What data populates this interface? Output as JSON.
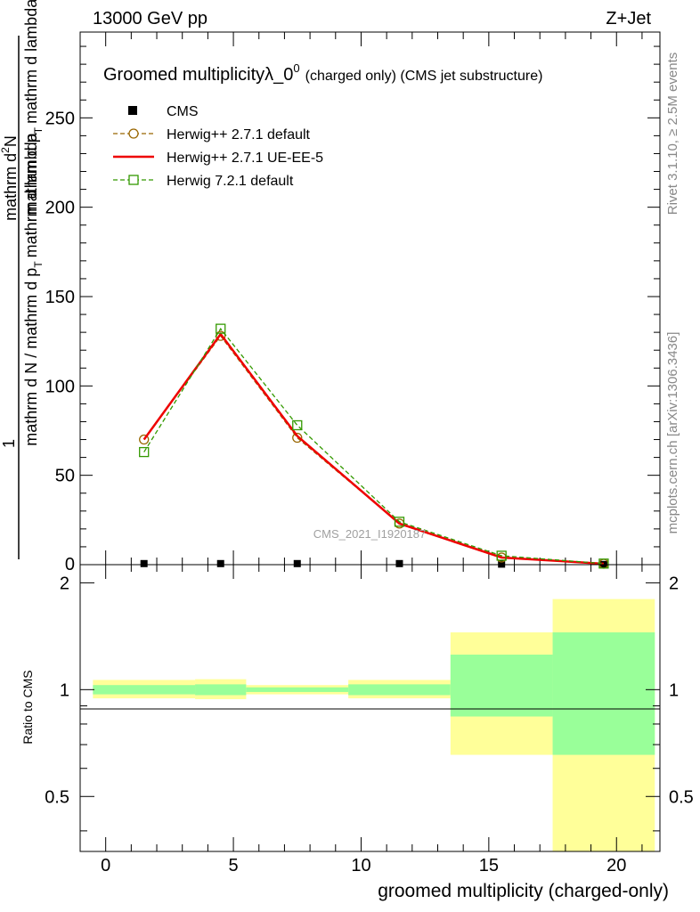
{
  "header": {
    "energy_label": "13000 GeV pp",
    "process_label": "Z+Jet"
  },
  "side_text": {
    "rivet": "Rivet 3.1.10, ≥ 2.5M events",
    "mcplots": "mcplots.cern.ch [arXiv:1306.3436]"
  },
  "watermark": "CMS_2021_I1920187",
  "colors": {
    "cms": "#000000",
    "herwigpp_default": "#996600",
    "herwigpp_ueee5": "#ee0000",
    "herwig721": "#339900",
    "band_inner": "#99ff99",
    "band_outer": "#ffff99"
  },
  "chart_data": [
    {
      "type": "line",
      "title_main": "Groomed multiplicityλ_0",
      "title_sup": "0",
      "title_suffix": "(charged only) (CMS jet substructure)",
      "ylabel_top": "1",
      "ylabel_den": "mathrm d N / mathrm d p",
      "ylabel_den_sub": "T",
      "ylabel_den_end": "mathrm d lambda",
      "ylabel_num": "mathrm d",
      "ylabel_num_sup": "2",
      "ylabel_num_end": "N",
      "ylabel_num2": "mathrm d p",
      "ylabel_num2_sub": "T",
      "ylabel_num2_end": "mathrm d lambda",
      "xlim": [
        -1.0,
        21.7
      ],
      "ylim": [
        0,
        298
      ],
      "yticks": [
        50,
        100,
        150,
        200,
        250
      ],
      "ytick_labels": [
        "50",
        "100",
        "150",
        "200",
        "250"
      ],
      "ytick_zero_label": "0",
      "x_bins": [
        [
          0.5,
          2.5
        ],
        [
          3.5,
          5.5
        ],
        [
          6.5,
          8.5
        ],
        [
          10.5,
          12.5
        ],
        [
          14.5,
          16.5
        ],
        [
          18.5,
          20.5
        ]
      ],
      "x": [
        1.5,
        4.5,
        7.5,
        11.5,
        15.5,
        19.5
      ],
      "series": [
        {
          "name": "CMS",
          "key": "cms",
          "values": [
            0.6,
            0.6,
            0.6,
            0.6,
            0.3,
            0.1
          ]
        },
        {
          "name": "Herwig++ 2.7.1 default",
          "key": "herwigpp_default",
          "values": [
            70,
            128,
            71,
            23,
            4,
            0.5
          ]
        },
        {
          "name": "Herwig++ 2.7.1 UE-EE-5",
          "key": "herwigpp_ueee5",
          "values": [
            70,
            129,
            72,
            23,
            4,
            0.5
          ]
        },
        {
          "name": "Herwig 7.2.1 default",
          "key": "herwig721",
          "values": [
            63,
            132,
            78,
            24,
            5,
            0.6
          ]
        }
      ],
      "legend": [
        "CMS",
        "Herwig++ 2.7.1 default",
        "Herwig++ 2.7.1 UE-EE-5",
        "Herwig 7.2.1 default"
      ],
      "legend_position": "top-left"
    },
    {
      "type": "area",
      "ylabel": "Ratio to CMS",
      "xlabel": "groomed multiplicity (charged-only)",
      "xlim": [
        -1.0,
        21.7
      ],
      "ylim": [
        0.35,
        2.25
      ],
      "xticks": [
        0,
        5,
        10,
        15,
        20
      ],
      "xtick_labels": [
        "0",
        "5",
        "10",
        "15",
        "20"
      ],
      "yticks": [
        0.5,
        1,
        2
      ],
      "ytick_labels": [
        "0.5",
        "1",
        "2"
      ],
      "band_edges": [
        -0.5,
        3.5,
        5.5,
        9.5,
        13.5,
        17.5,
        21.5
      ],
      "inner_band_low": [
        0.97,
        0.965,
        0.985,
        0.965,
        0.84,
        0.655
      ],
      "inner_band_high": [
        1.03,
        1.035,
        1.015,
        1.035,
        1.255,
        1.45
      ],
      "outer_band_low": [
        0.945,
        0.94,
        0.97,
        0.945,
        0.655,
        0.35
      ],
      "outer_band_high": [
        1.065,
        1.07,
        1.03,
        1.065,
        1.45,
        1.8
      ]
    }
  ]
}
